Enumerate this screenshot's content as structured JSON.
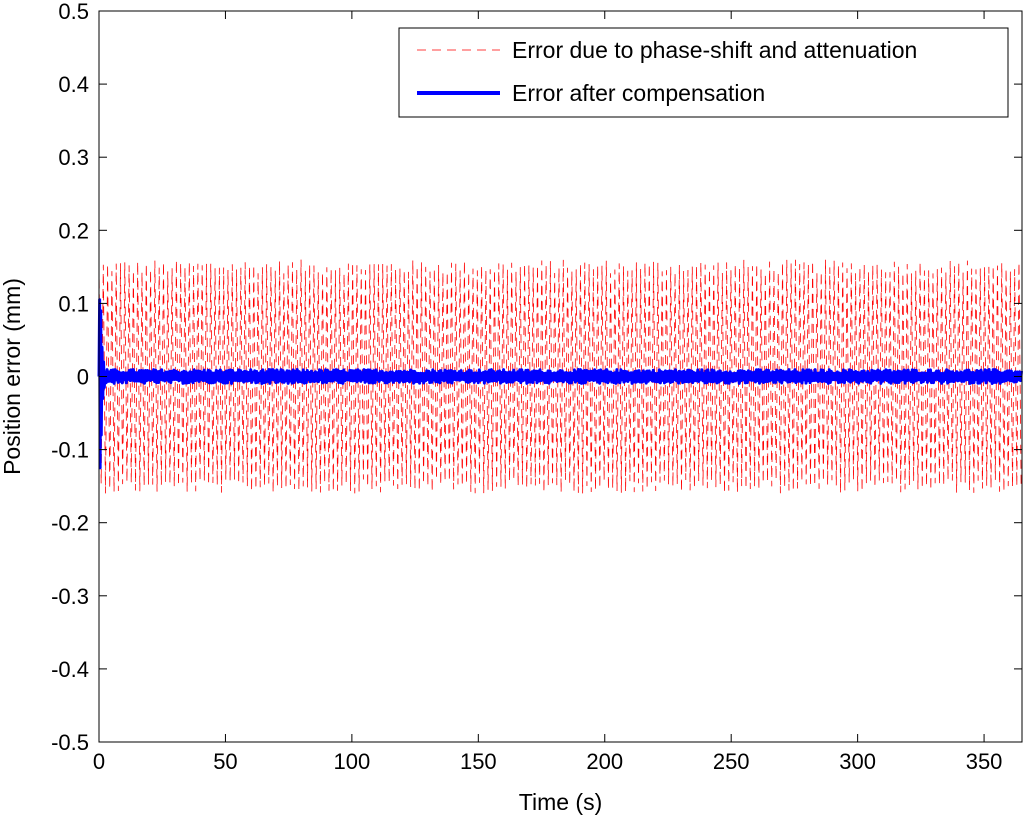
{
  "chart_data": {
    "type": "line",
    "title": "",
    "xlabel": "Time (s)",
    "ylabel": "Position error (mm)",
    "xlim": [
      0,
      365
    ],
    "ylim": [
      -0.5,
      0.5
    ],
    "xticks": [
      0,
      50,
      100,
      150,
      200,
      250,
      300,
      350
    ],
    "yticks": [
      -0.5,
      -0.4,
      -0.3,
      -0.2,
      -0.1,
      0,
      0.1,
      0.2,
      0.3,
      0.4,
      0.5
    ],
    "xtick_labels": [
      "0",
      "50",
      "100",
      "150",
      "200",
      "250",
      "300",
      "350"
    ],
    "ytick_labels": [
      "-0.5",
      "-0.4",
      "-0.3",
      "-0.2",
      "-0.1",
      "0",
      "0.1",
      "0.2",
      "0.3",
      "0.4",
      "0.5"
    ],
    "grid": false,
    "legend_position": "top-right",
    "series": [
      {
        "name": "Error due to phase-shift and attenuation",
        "color": "#ff0000",
        "style": "dashed",
        "amplitude": 0.16,
        "oscillation_period": 1.7
      },
      {
        "name": "Error after compensation",
        "color": "#0000ff",
        "style": "solid",
        "amplitude": 0.008,
        "initial_transient": {
          "max": 0.105,
          "min": -0.125,
          "duration": 2
        }
      }
    ]
  }
}
